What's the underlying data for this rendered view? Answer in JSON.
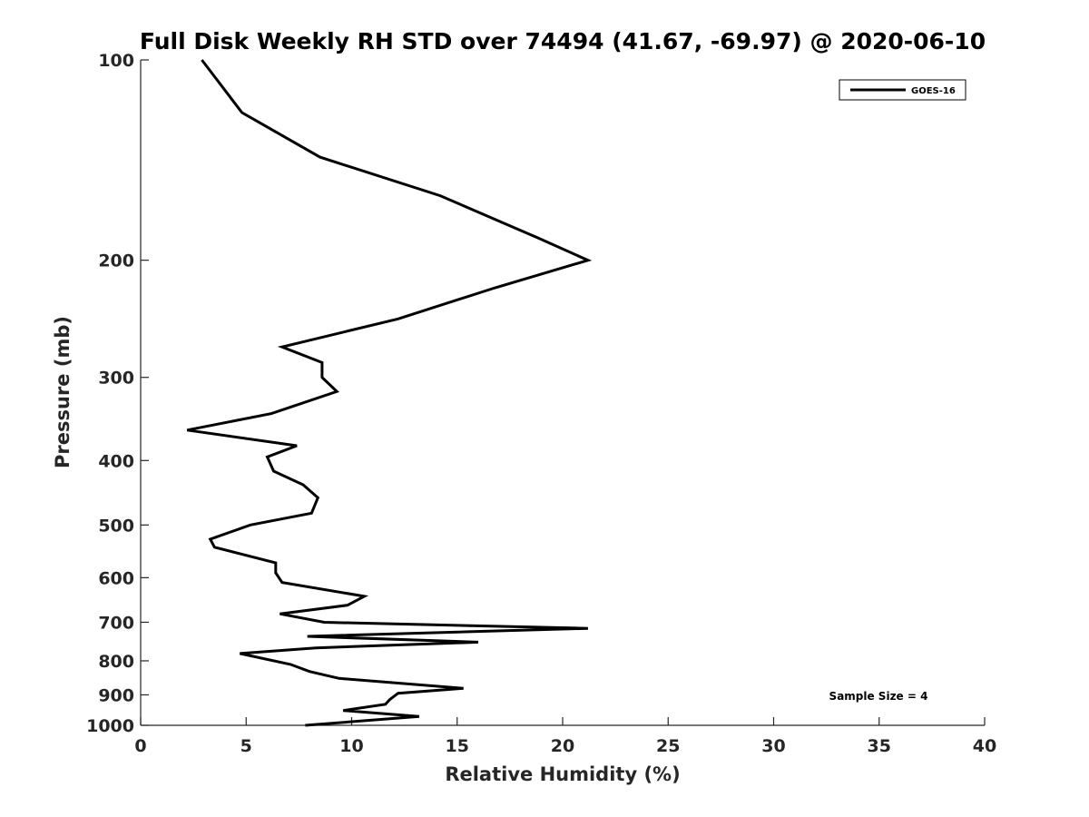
{
  "chart_data": {
    "type": "line",
    "title": "Full Disk Weekly RH STD over 74494 (41.67, -69.97) @ 2020-06-10",
    "xlabel": "Relative Humidity (%)",
    "ylabel": "Pressure (mb)",
    "xlim": [
      0,
      40
    ],
    "ylim": [
      100,
      1000
    ],
    "yscale": "log",
    "xticks": [
      0,
      5,
      10,
      15,
      20,
      25,
      30,
      35,
      40
    ],
    "yticks": [
      100,
      200,
      300,
      400,
      500,
      600,
      700,
      800,
      900,
      1000
    ],
    "legend_position": "top-right",
    "annotation": "Sample Size = 4",
    "series": [
      {
        "name": "GOES-16",
        "color": "#000000",
        "x": [
          2.9,
          4.8,
          8.5,
          14.2,
          18.8,
          21.2,
          16.8,
          12.2,
          6.7,
          8.6,
          8.6,
          9.3,
          6.2,
          2.2,
          7.4,
          6.0,
          6.3,
          7.7,
          8.4,
          8.1,
          5.2,
          3.3,
          3.5,
          6.4,
          6.4,
          6.7,
          10.6,
          9.8,
          6.6,
          8.7,
          21.2,
          7.9,
          16.0,
          8.3,
          4.7,
          7.1,
          8.0,
          9.4,
          15.3,
          12.2,
          11.8,
          11.6,
          9.6,
          13.2,
          7.8
        ],
        "y": [
          100,
          120,
          140,
          160,
          185,
          200,
          220,
          245,
          270,
          285,
          300,
          315,
          340,
          360,
          380,
          395,
          415,
          435,
          455,
          480,
          500,
          525,
          540,
          570,
          590,
          610,
          640,
          660,
          680,
          700,
          715,
          735,
          750,
          765,
          780,
          810,
          830,
          850,
          880,
          895,
          915,
          930,
          950,
          970,
          1000
        ]
      }
    ]
  }
}
